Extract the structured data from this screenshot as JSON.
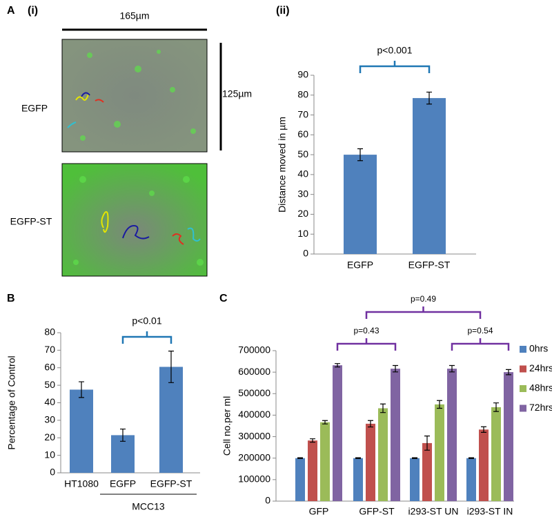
{
  "figure": {
    "labels": [
      "A",
      "(i)",
      "(ii)",
      "B",
      "C"
    ],
    "scale_x": "165µm",
    "scale_y": "125µm",
    "image_labels": [
      "EGFP",
      "EGFP-ST"
    ]
  },
  "chart_data": [
    {
      "type": "bar",
      "ylabel": "Distance moved in µm",
      "categories": [
        "EGFP",
        "EGFP-ST"
      ],
      "values": [
        50,
        78.5
      ],
      "errors": [
        3,
        3
      ],
      "color": "#4f81bd",
      "ylim": [
        0,
        90
      ],
      "yticks": [
        0,
        10,
        20,
        30,
        40,
        50,
        60,
        70,
        80,
        90
      ],
      "annotations": [
        "p<0.001"
      ]
    },
    {
      "type": "bar",
      "ylabel": "Percentage of Control",
      "categories": [
        "HT1080",
        "EGFP",
        "EGFP-ST"
      ],
      "values": [
        47.5,
        21.5,
        60.5
      ],
      "errors": [
        4.5,
        3.5,
        9
      ],
      "color": "#4f81bd",
      "ylim": [
        0,
        80
      ],
      "yticks": [
        0,
        10,
        20,
        30,
        40,
        50,
        60,
        70,
        80
      ],
      "annotations": [
        "p<0.01"
      ],
      "group_label": "MCC13"
    },
    {
      "type": "grouped-bar",
      "ylabel": "Cell no.per ml",
      "categories": [
        "GFP",
        "GFP-ST",
        "i293-ST UN",
        "i293-ST IN"
      ],
      "series": [
        {
          "name": "0hrs",
          "color": "#4f81bd",
          "values": [
            200000,
            200000,
            200000,
            200000
          ],
          "errors": [
            2000,
            2000,
            2000,
            2000
          ]
        },
        {
          "name": "24hrs",
          "color": "#c0504d",
          "values": [
            282000,
            360000,
            270000,
            333000
          ],
          "errors": [
            8000,
            15000,
            33000,
            13000
          ]
        },
        {
          "name": "48hrs",
          "color": "#9bbb59",
          "values": [
            367000,
            432000,
            450000,
            437000
          ],
          "errors": [
            8000,
            20000,
            18000,
            20000
          ]
        },
        {
          "name": "72hrs",
          "color": "#8064a2",
          "values": [
            632000,
            616000,
            616000,
            600000
          ],
          "errors": [
            8000,
            15000,
            15000,
            12000
          ]
        }
      ],
      "ylim": [
        0,
        700000
      ],
      "yticks": [
        0,
        100000,
        200000,
        300000,
        400000,
        500000,
        600000,
        700000
      ],
      "legend": "right",
      "annotations": [
        "p=0.43",
        "p=0.54",
        "p=0.49"
      ]
    }
  ]
}
